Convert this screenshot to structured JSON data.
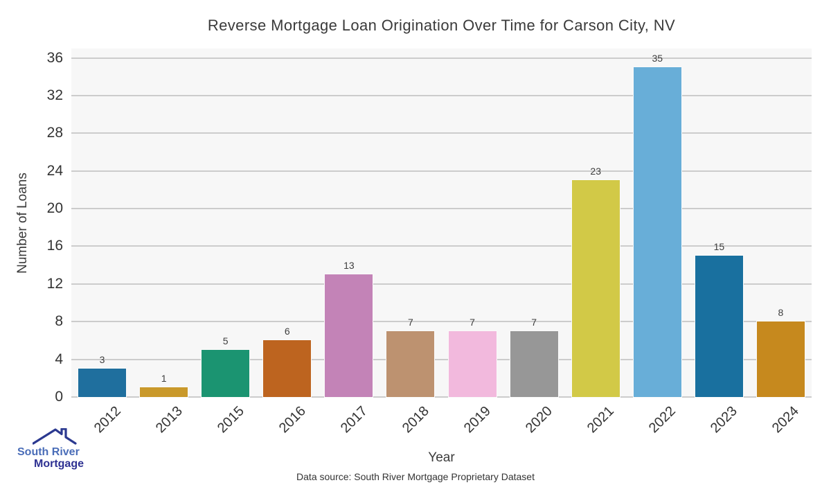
{
  "chart_data": {
    "type": "bar",
    "title": "Reverse Mortgage Loan Origination Over Time for Carson City, NV",
    "xlabel": "Year",
    "ylabel": "Number of Loans",
    "categories": [
      "2012",
      "2013",
      "2015",
      "2016",
      "2017",
      "2018",
      "2019",
      "2020",
      "2021",
      "2022",
      "2023",
      "2024"
    ],
    "values": [
      3,
      1,
      5,
      6,
      13,
      7,
      7,
      7,
      23,
      35,
      15,
      8
    ],
    "bar_colors": [
      "#1f6f9e",
      "#c9992b",
      "#1b9471",
      "#bd641f",
      "#c383b7",
      "#bd9270",
      "#f2b9dd",
      "#979797",
      "#d2c947",
      "#68aed8",
      "#19709f",
      "#c6891e"
    ],
    "yticks": [
      0,
      4,
      8,
      12,
      16,
      20,
      24,
      28,
      32,
      36
    ],
    "ylim": [
      0,
      37
    ],
    "grid": true,
    "legend": "none",
    "plot_bg": "#f7f7f7",
    "grid_color": "#cccccc",
    "bar_edge_color": "#fafafa",
    "value_labels_shown": true
  },
  "footer": {
    "source_note": "Data source: South River Mortgage Proprietary Dataset"
  },
  "logo": {
    "line1": "South River",
    "line2": "Mortgage",
    "line1_color": "#4a6db8",
    "line2_color": "#2e3192",
    "roof_color": "#2b3990"
  }
}
